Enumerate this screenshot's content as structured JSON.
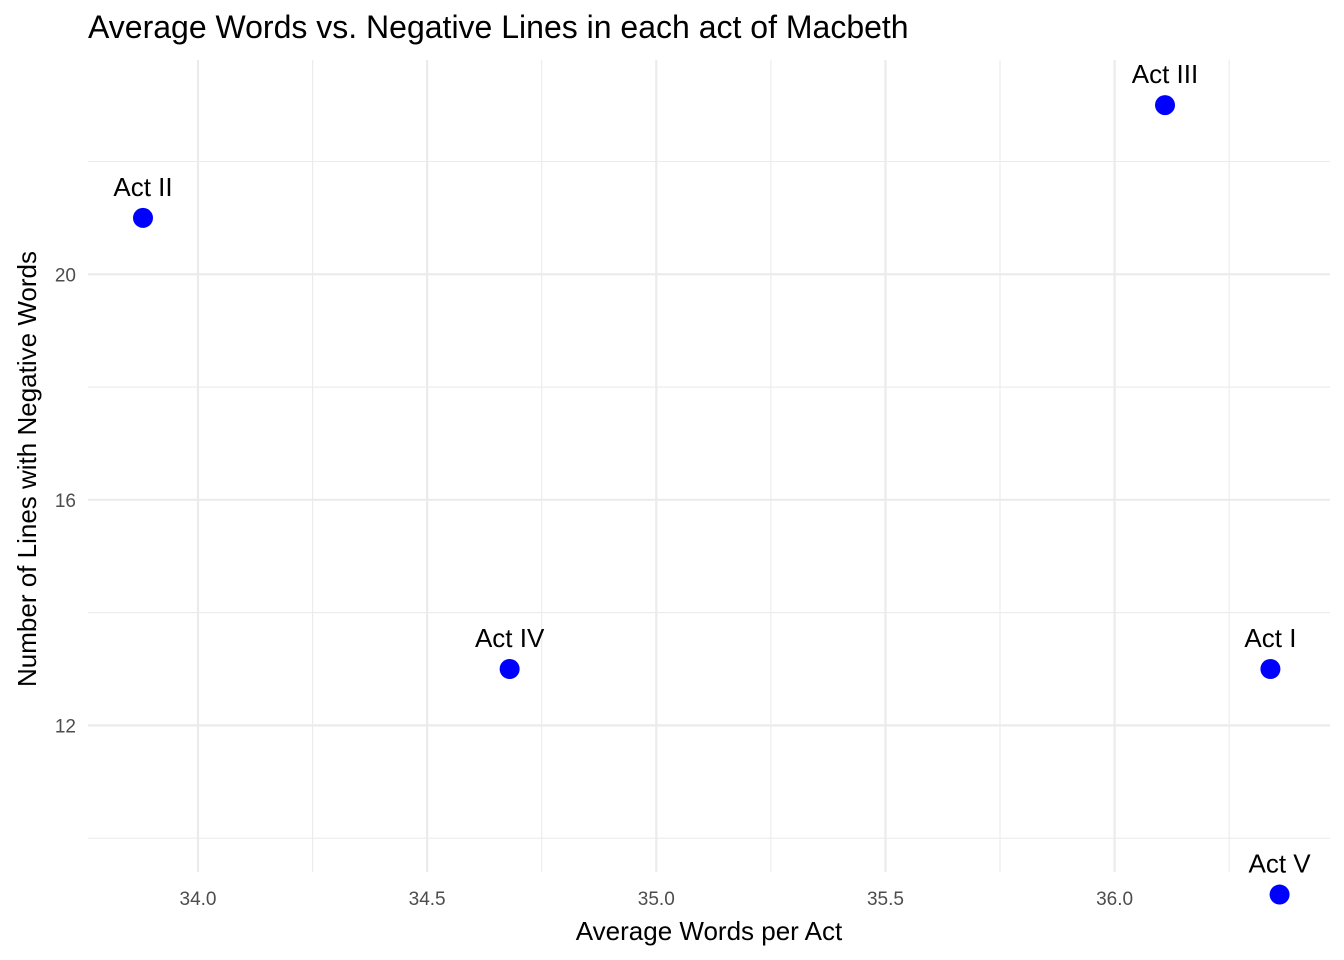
{
  "chart_data": {
    "type": "scatter",
    "title": "Average Words vs. Negative Lines in each act of Macbeth",
    "xlabel": "Average Words per Act",
    "ylabel": "Number of Lines with Negative Words",
    "xlim": [
      33.76,
      36.47
    ],
    "ylim": [
      9.4,
      23.8
    ],
    "x_ticks": [
      34.0,
      34.5,
      35.0,
      35.5,
      36.0
    ],
    "x_tick_labels": [
      "34.0",
      "34.5",
      "35.0",
      "35.5",
      "36.0"
    ],
    "x_minor_ticks": [
      34.25,
      34.75,
      35.25,
      35.75,
      36.25
    ],
    "y_ticks": [
      12,
      16,
      20
    ],
    "y_tick_labels": [
      "12",
      "16",
      "20"
    ],
    "y_minor_ticks": [
      10,
      14,
      18,
      22
    ],
    "grid": true,
    "point_color": "#0000ff",
    "points": [
      {
        "label": "Act I",
        "x": 36.34,
        "y": 13
      },
      {
        "label": "Act II",
        "x": 33.88,
        "y": 21
      },
      {
        "label": "Act III",
        "x": 36.11,
        "y": 23
      },
      {
        "label": "Act IV",
        "x": 34.68,
        "y": 13
      },
      {
        "label": "Act V",
        "x": 36.36,
        "y": 9
      }
    ]
  }
}
